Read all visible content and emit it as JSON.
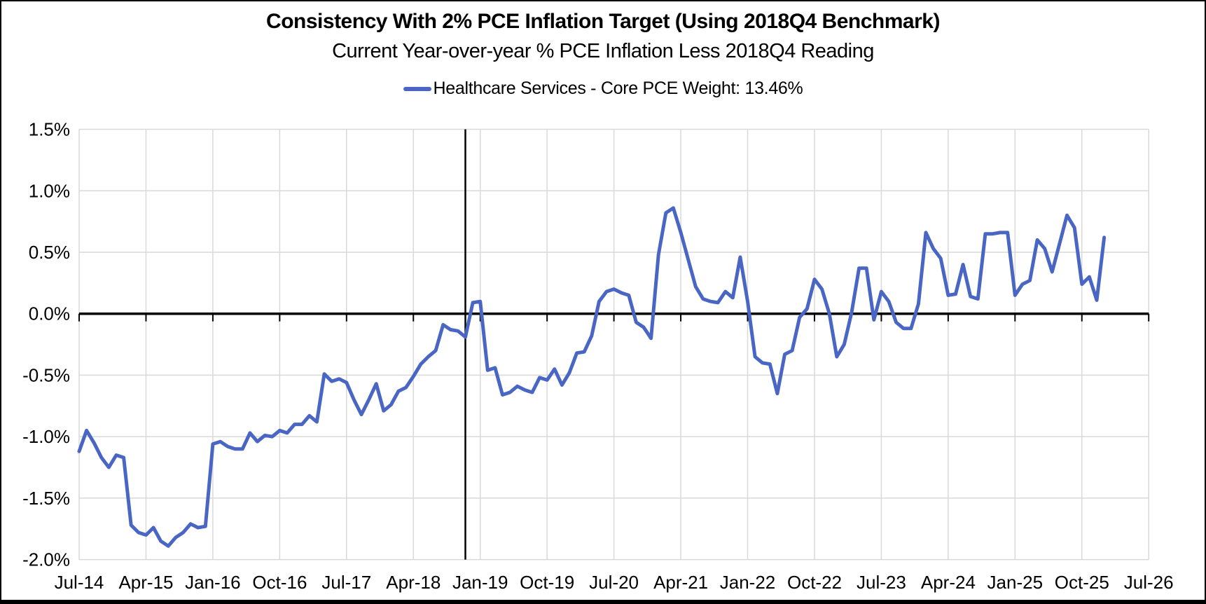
{
  "header": {
    "title": "Consistency With 2% PCE Inflation Target (Using 2018Q4 Benchmark)",
    "subtitle": "Current Year-over-year % PCE Inflation Less 2018Q4 Reading"
  },
  "legend": {
    "label": "Healthcare Services - Core PCE Weight: 13.46%",
    "marker": "line-marker",
    "color": "#4a66c4"
  },
  "chart_data": {
    "type": "line",
    "title": "Consistency With 2% PCE Inflation Target (Using 2018Q4 Benchmark)",
    "subtitle": "Current Year-over-year % PCE Inflation Less 2018Q4 Reading",
    "xlabel": "",
    "ylabel": "",
    "ylim": [
      -2.0,
      1.5
    ],
    "grid": true,
    "legend_position": "top-center",
    "y_tick_labels": [
      "1.5%",
      "1.0%",
      "0.5%",
      "0.0%",
      "-0.5%",
      "-1.0%",
      "-1.5%",
      "-2.0%"
    ],
    "y_tick_values": [
      1.5,
      1.0,
      0.5,
      0.0,
      -0.5,
      -1.0,
      -1.5,
      -2.0
    ],
    "x_tick_labels": [
      "Jul-14",
      "Apr-15",
      "Jan-16",
      "Oct-16",
      "Jul-17",
      "Apr-18",
      "Jan-19",
      "Oct-19",
      "Jul-20",
      "Apr-21",
      "Jan-22",
      "Oct-22",
      "Jul-23",
      "Apr-24",
      "Jan-25",
      "Oct-25",
      "Jul-26"
    ],
    "months_per_x_tick": 9,
    "benchmark_vline_month_index": 52,
    "zero_axis_emphasized": true,
    "colors": {
      "series": "#4a66c4",
      "gridline": "#d9d9d9",
      "axis": "#000000",
      "benchmark_line": "#000000",
      "text": "#000000"
    },
    "series": [
      {
        "name": "Healthcare Services - Core PCE Weight: 13.46%",
        "color": "#4a66c4",
        "x": [
          "Jul-14",
          "Aug-14",
          "Sep-14",
          "Oct-14",
          "Nov-14",
          "Dec-14",
          "Jan-15",
          "Feb-15",
          "Mar-15",
          "Apr-15",
          "May-15",
          "Jun-15",
          "Jul-15",
          "Aug-15",
          "Sep-15",
          "Oct-15",
          "Nov-15",
          "Dec-15",
          "Jan-16",
          "Feb-16",
          "Mar-16",
          "Apr-16",
          "May-16",
          "Jun-16",
          "Jul-16",
          "Aug-16",
          "Sep-16",
          "Oct-16",
          "Nov-16",
          "Dec-16",
          "Jan-17",
          "Feb-17",
          "Mar-17",
          "Apr-17",
          "May-17",
          "Jun-17",
          "Jul-17",
          "Aug-17",
          "Sep-17",
          "Oct-17",
          "Nov-17",
          "Dec-17",
          "Jan-18",
          "Feb-18",
          "Mar-18",
          "Apr-18",
          "May-18",
          "Jun-18",
          "Jul-18",
          "Aug-18",
          "Sep-18",
          "Oct-18",
          "Nov-18",
          "Dec-18",
          "Jan-19",
          "Feb-19",
          "Mar-19",
          "Apr-19",
          "May-19",
          "Jun-19",
          "Jul-19",
          "Aug-19",
          "Sep-19",
          "Oct-19",
          "Nov-19",
          "Dec-19",
          "Jan-20",
          "Feb-20",
          "Mar-20",
          "Apr-20",
          "May-20",
          "Jun-20",
          "Jul-20",
          "Aug-20",
          "Sep-20",
          "Oct-20",
          "Nov-20",
          "Dec-20",
          "Jan-21",
          "Feb-21",
          "Mar-21",
          "Apr-21",
          "May-21",
          "Jun-21",
          "Jul-21",
          "Aug-21",
          "Sep-21",
          "Oct-21",
          "Nov-21",
          "Dec-21",
          "Jan-22",
          "Feb-22",
          "Mar-22",
          "Apr-22",
          "May-22",
          "Jun-22",
          "Jul-22",
          "Aug-22",
          "Sep-22",
          "Oct-22",
          "Nov-22",
          "Dec-22",
          "Jan-23",
          "Feb-23",
          "Mar-23",
          "Apr-23",
          "May-23",
          "Jun-23",
          "Jul-23",
          "Aug-23",
          "Sep-23",
          "Oct-23",
          "Nov-23",
          "Dec-23",
          "Jan-24",
          "Feb-24",
          "Mar-24",
          "Apr-24",
          "May-24",
          "Jun-24",
          "Jul-24",
          "Aug-24",
          "Sep-24",
          "Oct-24",
          "Nov-24",
          "Dec-24",
          "Jan-25",
          "Feb-25",
          "Mar-25",
          "Apr-25",
          "May-25",
          "Jun-25",
          "Jul-25",
          "Aug-25",
          "Sep-25",
          "Oct-25",
          "Nov-25",
          "Dec-25",
          "Jan-26"
        ],
        "values": [
          -1.12,
          -0.95,
          -1.05,
          -1.17,
          -1.25,
          -1.15,
          -1.17,
          -1.72,
          -1.78,
          -1.8,
          -1.74,
          -1.85,
          -1.89,
          -1.82,
          -1.78,
          -1.71,
          -1.74,
          -1.73,
          -1.06,
          -1.04,
          -1.08,
          -1.1,
          -1.1,
          -0.97,
          -1.04,
          -0.99,
          -1.0,
          -0.95,
          -0.97,
          -0.9,
          -0.9,
          -0.83,
          -0.88,
          -0.49,
          -0.55,
          -0.53,
          -0.56,
          -0.7,
          -0.82,
          -0.7,
          -0.57,
          -0.79,
          -0.74,
          -0.63,
          -0.6,
          -0.51,
          -0.41,
          -0.35,
          -0.3,
          -0.09,
          -0.13,
          -0.14,
          -0.19,
          0.09,
          0.1,
          -0.46,
          -0.44,
          -0.66,
          -0.64,
          -0.59,
          -0.62,
          -0.64,
          -0.52,
          -0.54,
          -0.45,
          -0.58,
          -0.48,
          -0.32,
          -0.31,
          -0.18,
          0.1,
          0.18,
          0.2,
          0.17,
          0.15,
          -0.07,
          -0.11,
          -0.2,
          0.48,
          0.82,
          0.86,
          0.66,
          0.44,
          0.22,
          0.12,
          0.1,
          0.09,
          0.18,
          0.13,
          0.46,
          0.1,
          -0.35,
          -0.4,
          -0.41,
          -0.65,
          -0.33,
          -0.3,
          -0.03,
          0.04,
          0.28,
          0.2,
          0.0,
          -0.35,
          -0.25,
          0.01,
          0.37,
          0.37,
          -0.05,
          0.18,
          0.1,
          -0.07,
          -0.12,
          -0.12,
          0.08,
          0.66,
          0.53,
          0.45,
          0.15,
          0.16,
          0.4,
          0.14,
          0.12,
          0.65,
          0.65,
          0.66,
          0.66,
          0.15,
          0.24,
          0.27,
          0.6,
          0.53,
          0.34,
          0.57,
          0.8,
          0.7,
          0.24,
          0.3,
          0.11,
          0.62
        ]
      }
    ]
  }
}
